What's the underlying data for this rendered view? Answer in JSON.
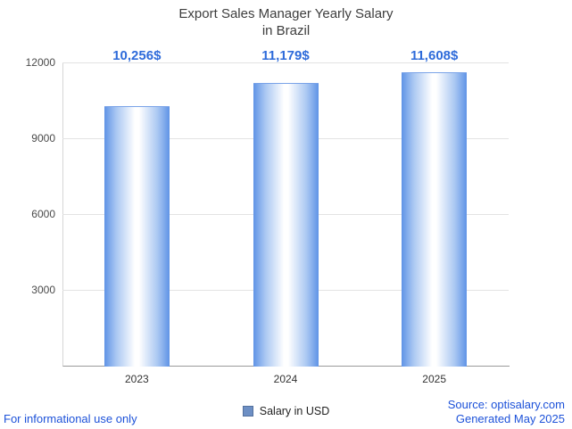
{
  "title": {
    "line1": "Export Sales Manager Yearly Salary",
    "line2": "in Brazil"
  },
  "chart_data": {
    "type": "bar",
    "title": "Export Sales Manager Yearly Salary in Brazil",
    "categories": [
      "2023",
      "2024",
      "2025"
    ],
    "values": [
      10256,
      11179,
      11608
    ],
    "value_labels": [
      "10,256$",
      "11,179$",
      "11,608$"
    ],
    "xlabel": "",
    "ylabel": "",
    "ylim": [
      0,
      12000
    ],
    "yticks": [
      3000,
      6000,
      9000,
      12000
    ],
    "grid": true,
    "legend": {
      "label": "Salary in USD",
      "position": "bottom"
    },
    "colors": {
      "bar_edge": "#5f93e6",
      "bar_center": "#ffffff",
      "value_label": "#2e6bda",
      "link_text": "#1d52d9"
    }
  },
  "footer": {
    "left": "For informational use only",
    "source": "Source: optisalary.com",
    "generated": "Generated May 2025"
  }
}
